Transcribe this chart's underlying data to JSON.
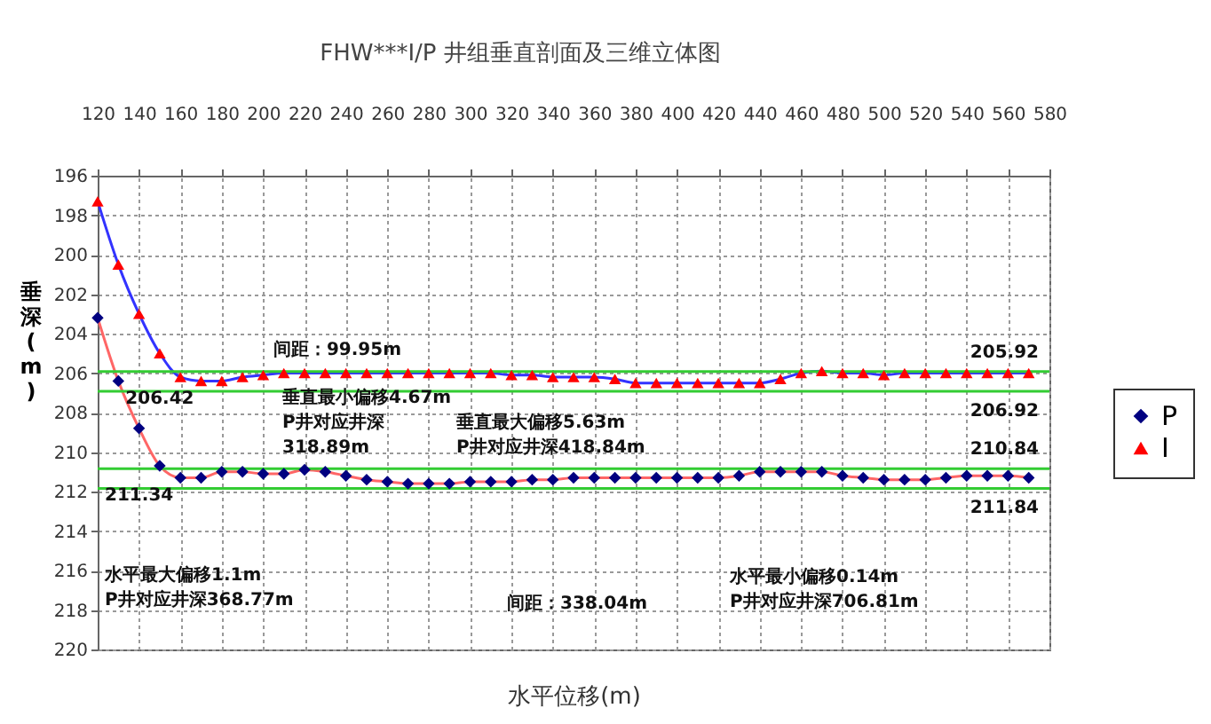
{
  "chart_data": {
    "type": "line",
    "title": "FHW***I/P 井组垂直剖面及三维立体图",
    "xlabel": "水平位移(m)",
    "ylabel": "垂深(m)",
    "x": [
      120,
      130,
      140,
      150,
      160,
      170,
      180,
      190,
      200,
      210,
      220,
      230,
      240,
      250,
      260,
      270,
      280,
      290,
      300,
      310,
      320,
      330,
      340,
      350,
      360,
      370,
      380,
      390,
      400,
      410,
      420,
      430,
      440,
      450,
      460,
      470,
      480,
      490,
      500,
      510,
      520,
      530,
      540,
      550,
      560,
      570
    ],
    "series": [
      {
        "name": "P",
        "color": "#000080",
        "marker": "diamond",
        "values": [
          203.2,
          206.4,
          208.8,
          210.7,
          211.3,
          211.3,
          211.0,
          211.0,
          211.1,
          211.1,
          210.9,
          211.0,
          211.2,
          211.4,
          211.5,
          211.6,
          211.6,
          211.6,
          211.5,
          211.5,
          211.5,
          211.4,
          211.4,
          211.3,
          211.3,
          211.3,
          211.3,
          211.3,
          211.3,
          211.3,
          211.3,
          211.2,
          211.0,
          211.0,
          211.0,
          211.0,
          211.2,
          211.3,
          211.4,
          211.4,
          211.4,
          211.3,
          211.2,
          211.2,
          211.2,
          211.3
        ]
      },
      {
        "name": "I",
        "color": "#ff0000",
        "marker": "triangle",
        "values": [
          197.3,
          200.5,
          203.0,
          205.0,
          206.2,
          206.4,
          206.4,
          206.2,
          206.1,
          206.0,
          206.0,
          206.0,
          206.0,
          206.0,
          206.0,
          206.0,
          206.0,
          206.0,
          206.0,
          206.0,
          206.1,
          206.1,
          206.2,
          206.2,
          206.2,
          206.3,
          206.5,
          206.5,
          206.5,
          206.5,
          206.5,
          206.5,
          206.5,
          206.3,
          206.0,
          205.9,
          206.0,
          206.0,
          206.1,
          206.0,
          206.0,
          206.0,
          206.0,
          206.0,
          206.0,
          206.0
        ]
      }
    ],
    "xlim": [
      120,
      580
    ],
    "xticks": [
      120,
      140,
      160,
      180,
      200,
      220,
      240,
      260,
      280,
      300,
      320,
      340,
      360,
      380,
      400,
      420,
      440,
      460,
      480,
      500,
      520,
      540,
      560,
      580
    ],
    "ylim": [
      220,
      196
    ],
    "yticks": [
      196,
      198,
      200,
      202,
      204,
      206,
      208,
      210,
      212,
      214,
      216,
      218,
      220
    ],
    "ref_lines": [
      {
        "axis": "y",
        "value": 205.92,
        "label": "205.92",
        "color": "#33cc33"
      },
      {
        "axis": "y",
        "value": 206.92,
        "label": "206.92",
        "color": "#33cc33"
      },
      {
        "axis": "y",
        "value": 210.84,
        "label": "210.84",
        "color": "#33cc33"
      },
      {
        "axis": "y",
        "value": 211.84,
        "label": "211.84",
        "color": "#33cc33"
      }
    ],
    "annotations": [
      {
        "text": "206.42",
        "x": 170,
        "y": 206.4
      },
      {
        "text": "211.34",
        "x": 160,
        "y": 211.3
      },
      "间距：99.95m",
      "垂直最小偏移4.67m\nP井对应井深\n318.89m",
      "垂直最大偏移5.63m\nP井对应井深418.84m",
      "水平最大偏移1.1m\nP井对应井深368.77m",
      "间距：338.04m",
      "水平最小偏移0.14m\nP井对应井深706.81m"
    ],
    "grid": true,
    "legend": "right",
    "line_style": "solid"
  }
}
